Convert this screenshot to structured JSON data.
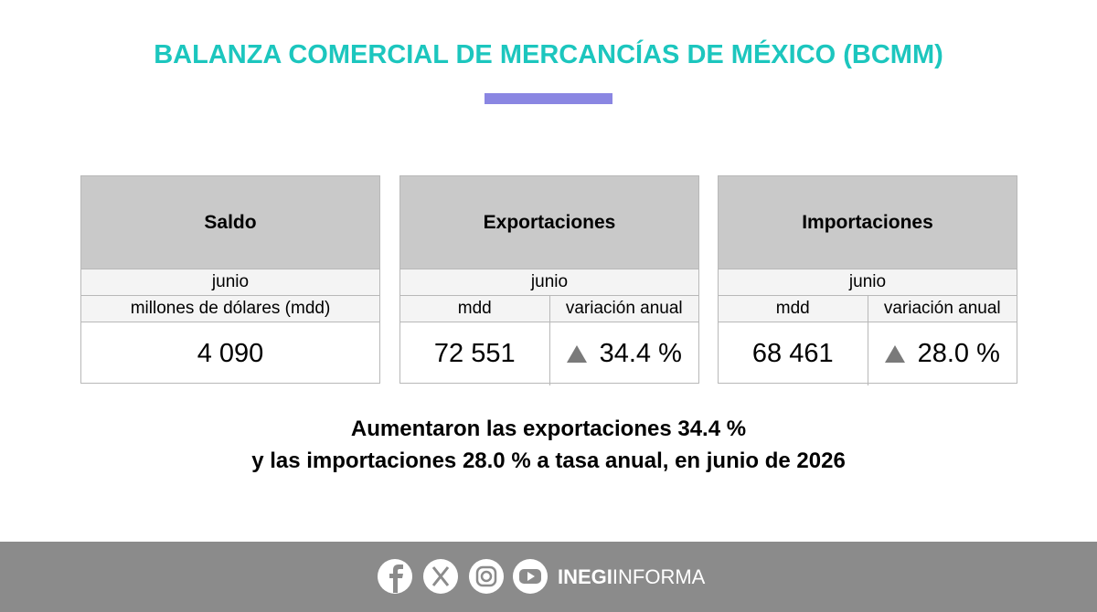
{
  "header": {
    "title": "BALANZA COMERCIAL DE MERCANCÍAS DE MÉXICO (BCMM)"
  },
  "panels": [
    {
      "title": "Saldo",
      "period": "junio",
      "columns": [
        {
          "unit": "millones de dólares (mdd)",
          "value": "4 090"
        }
      ]
    },
    {
      "title": "Exportaciones",
      "period": "junio",
      "columns": [
        {
          "unit": "mdd",
          "value": "72 551"
        },
        {
          "unit": "variación anual",
          "value": "34.4 %"
        }
      ]
    },
    {
      "title": "Importaciones",
      "period": "junio",
      "columns": [
        {
          "unit": "mdd",
          "value": "68 461"
        },
        {
          "unit": "variación anual",
          "value": "28.0 %"
        }
      ]
    }
  ],
  "summary": [
    "Aumentaron las exportaciones 34.4 %",
    "y las importaciones 28.0 % a tasa anual, en junio de 2026"
  ],
  "footer": {
    "brand_bold": "INEGI",
    "brand_light": "INFORMA"
  }
}
